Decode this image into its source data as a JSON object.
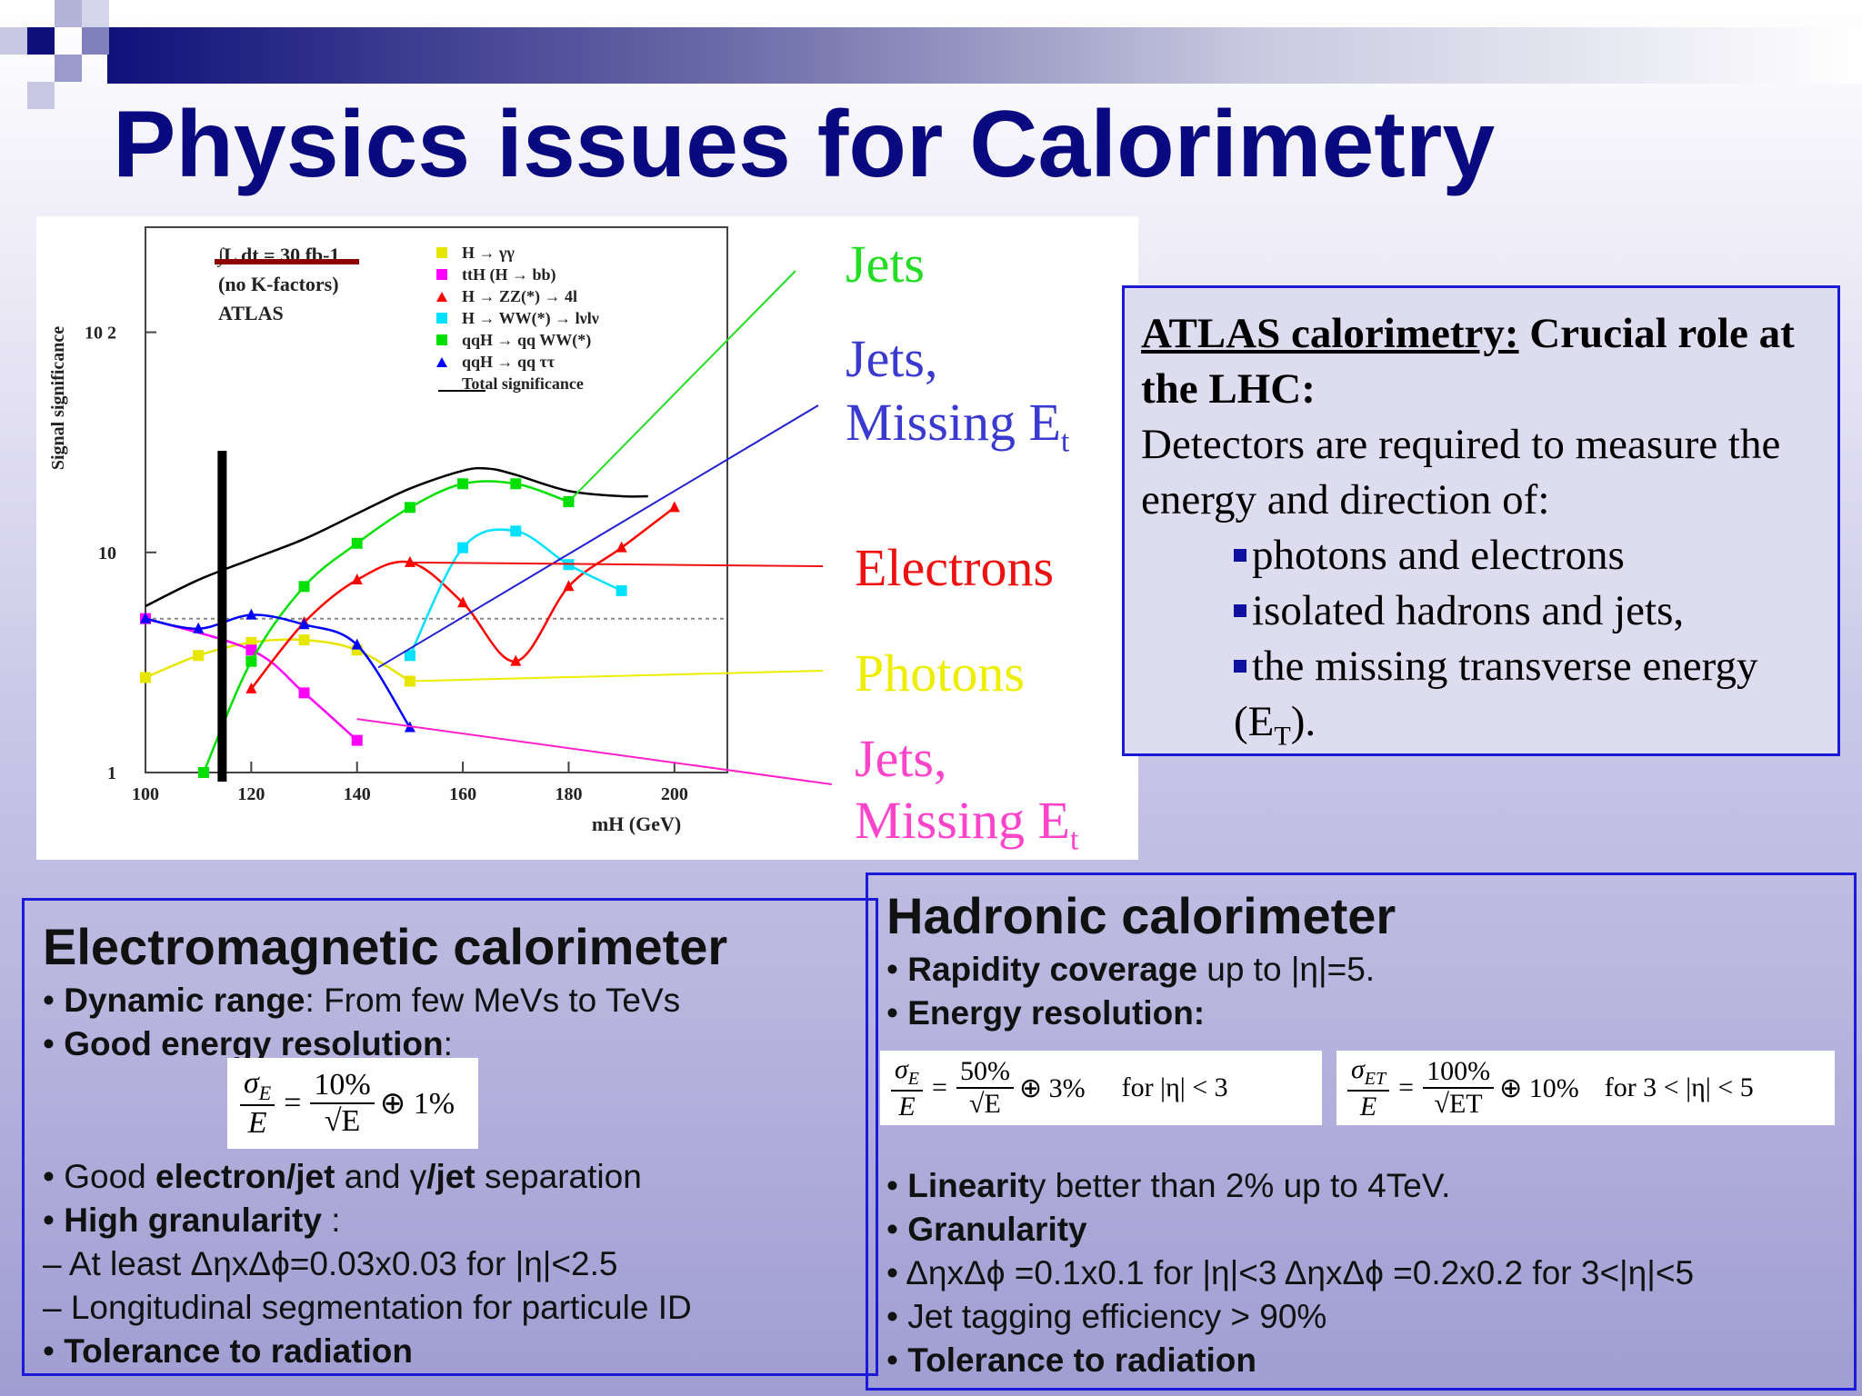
{
  "title": "Physics issues for Calorimetry",
  "chart_data": {
    "type": "line",
    "ylabel": "Signal significance",
    "xlabel": "mH (GeV)",
    "xlim": [
      100,
      210
    ],
    "ylim": [
      1,
      300
    ],
    "log_y": true,
    "x_ticks": [
      "100",
      "120",
      "140",
      "160",
      "180",
      "200"
    ],
    "y_ticks": [
      "1",
      "10",
      "10 2"
    ],
    "annotations": [
      "∫L dt = 30 fb-1",
      "(no K-factors)",
      "ATLAS"
    ],
    "reference_line_y": 5,
    "vertical_marker_x": 114.5,
    "legend": [
      {
        "label": "H → γγ",
        "color": "#e6e600",
        "marker": "square"
      },
      {
        "label": "ttH (H → bb)",
        "color": "#ff00ff",
        "marker": "square"
      },
      {
        "label": "H → ZZ(*) → 4l",
        "color": "#ff0000",
        "marker": "triangle"
      },
      {
        "label": "H → WW(*) → lνlν",
        "color": "#00e0ff",
        "marker": "square"
      },
      {
        "label": "qqH → qq WW(*)",
        "color": "#00e000",
        "marker": "square"
      },
      {
        "label": "qqH → qq ττ",
        "color": "#0000ff",
        "marker": "triangle"
      },
      {
        "label": "Total significance",
        "color": "#000000",
        "marker": "none"
      }
    ],
    "series": [
      {
        "name": "H → γγ",
        "color": "#e6e600",
        "marker": "square",
        "x": [
          100,
          110,
          120,
          130,
          140,
          150
        ],
        "y": [
          2.7,
          3.4,
          3.9,
          4.0,
          3.6,
          2.6
        ]
      },
      {
        "name": "ttH (H → bb)",
        "color": "#ff00ff",
        "marker": "square",
        "x": [
          100,
          120,
          130,
          140
        ],
        "y": [
          5.0,
          3.6,
          2.3,
          1.4
        ]
      },
      {
        "name": "H → ZZ(*) → 4l",
        "color": "#ff0000",
        "marker": "triangle",
        "x": [
          120,
          130,
          140,
          150,
          160,
          170,
          180,
          190,
          200
        ],
        "y": [
          2.4,
          4.8,
          7.5,
          9.0,
          5.9,
          3.2,
          7.0,
          10.5,
          16.0
        ]
      },
      {
        "name": "H → WW(*) → lνlν",
        "color": "#00e0ff",
        "marker": "square",
        "x": [
          150,
          160,
          170,
          180,
          190
        ],
        "y": [
          3.4,
          10.5,
          12.5,
          8.8,
          6.7
        ]
      },
      {
        "name": "qqH → qq WW(*)",
        "color": "#00e000",
        "marker": "square",
        "x": [
          111,
          120,
          130,
          140,
          150,
          160,
          170,
          180
        ],
        "y": [
          1.0,
          3.2,
          7.0,
          11.0,
          16.0,
          20.5,
          20.5,
          17.0
        ]
      },
      {
        "name": "qqH → qq ττ",
        "color": "#0000ff",
        "marker": "triangle",
        "x": [
          100,
          110,
          120,
          130,
          140,
          150
        ],
        "y": [
          5.0,
          4.5,
          5.2,
          4.7,
          3.8,
          1.6
        ]
      },
      {
        "name": "Total significance",
        "color": "#000000",
        "marker": "none",
        "x": [
          100,
          110,
          120,
          130,
          140,
          150,
          160,
          165,
          170,
          180,
          190,
          195
        ],
        "y": [
          5.7,
          7.5,
          9.3,
          11.5,
          15.0,
          19.5,
          23.5,
          24.0,
          22.5,
          19.0,
          18.0,
          18.0
        ]
      }
    ]
  },
  "side_labels": {
    "jets": "Jets",
    "jets_met": "Jets,",
    "missing_et": "Missing E",
    "et_sub": "t",
    "electrons": "Electrons",
    "photons": "Photons",
    "jets_met2": "Jets,",
    "missing_et2": "Missing E",
    "et_sub2": "t",
    "colors": {
      "jets": "#22dd22",
      "jets_met": "#3a3ad0",
      "electrons": "#ee1111",
      "photons": "#eeee00",
      "jets_met2": "#ff44cc"
    }
  },
  "atlas_box": {
    "head_underlined": "ATLAS calorimetry:",
    "head_rest": " Crucial role at the LHC:",
    "line1": "Detectors are required to measure the energy and direction of:",
    "bullet1": "photons and electrons",
    "bullet2": "isolated hadrons and jets,",
    "bullet3": "the missing transverse energy",
    "bullet3b": "(E",
    "bullet3b_sub": "T",
    "bullet3b_end": ")."
  },
  "em": {
    "heading": "Electromagnetic calorimeter",
    "dyn_bold": "Dynamic range",
    "dyn_rest": ": From few MeVs to TeVs",
    "res_bold": "Good energy resolution",
    "res_rest": ":",
    "sep_pre": "Good ",
    "sep_b1": "electron/jet",
    "sep_mid": " and γ",
    "sep_b2": "/jet",
    "sep_post": " separation",
    "gran_bold": "High granularity",
    "gran_rest": " :",
    "atleast": "– At least ΔηxΔϕ=0.03x0.03 for |η|<2.5",
    "longi": "– Longitudinal segmentation for particule ID",
    "tol": "Tolerance to radiation",
    "formula": {
      "num_l": "σ",
      "num_l_sub": "E",
      "den_l": "E",
      "eq": "=",
      "num_r": "10%",
      "den_r": "√E",
      "tail": "⊕ 1%"
    }
  },
  "had": {
    "heading": "Hadronic calorimeter",
    "rap_bold": "Rapidity coverage",
    "rap_rest": " up to |η|=5.",
    "eres_bold": "Energy resolution:",
    "lin_bold": "Linearit",
    "lin_rest": "y better than 2% up to 4TeV.",
    "gran_bold": "Granularity",
    "gran_line": "ΔηxΔϕ =0.1x0.1 for |η|<3  ΔηxΔϕ =0.2x0.2 for 3<|η|<5",
    "jet_tag": "Jet tagging efficiency > 90%",
    "tol": "Tolerance to radiation",
    "formula1": {
      "num_l": "σ",
      "num_l_sub": "E",
      "den_l": "E",
      "eq": "=",
      "num_r": "50%",
      "den_r": "√E",
      "tail": "⊕ 3%",
      "cond": "for  |η| < 3"
    },
    "formula2": {
      "num_l": "σ",
      "num_l_sub": "ET",
      "den_l": "E",
      "eq": "=",
      "num_r": "100%",
      "den_r": "√ET",
      "tail": "⊕ 10%",
      "cond": "for  3 < |η| < 5"
    }
  }
}
